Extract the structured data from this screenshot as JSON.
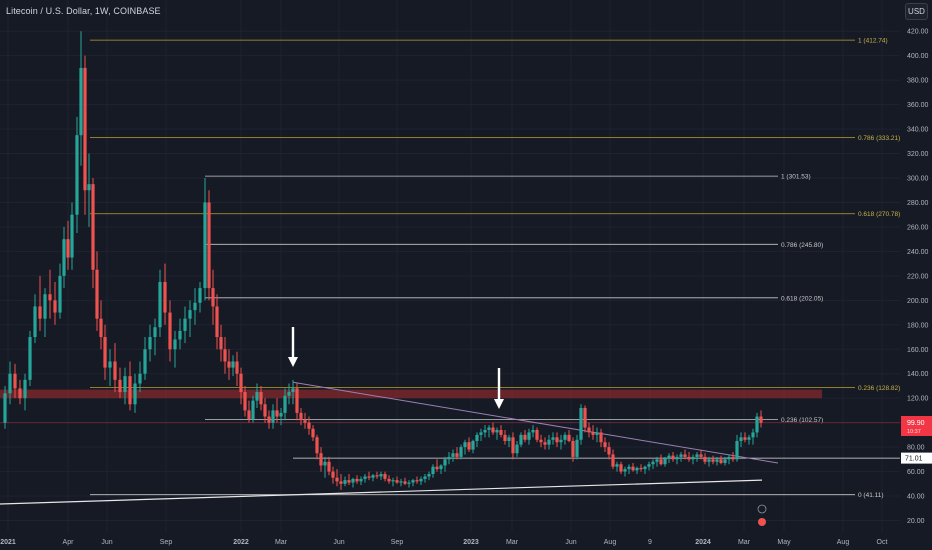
{
  "header": {
    "title": "Litecoin / U.S. Dollar, 1W, COINBASE",
    "currency": "USD"
  },
  "chart_data": {
    "type": "candlestick",
    "title": "Litecoin / U.S. Dollar, 1W, COINBASE",
    "ylim": [
      16,
      430
    ],
    "y_ticks": [
      20,
      40,
      60,
      80,
      100,
      120,
      140,
      160,
      180,
      200,
      220,
      240,
      260,
      280,
      300,
      320,
      340,
      360,
      380,
      400,
      420
    ],
    "x_ticks": [
      "2021",
      "Apr",
      "Jun",
      "Sep",
      "2022",
      "Mar",
      "Jun",
      "Sep",
      "2023",
      "Mar",
      "Jun",
      "Aug",
      "9",
      "2024",
      "Mar",
      "May",
      "Aug",
      "Oct"
    ],
    "price_labels": {
      "current": "99.90",
      "current_sub": "10:37",
      "level": "71.01"
    },
    "fib_levels": [
      {
        "label": "1 (412.74)",
        "value": 412.74,
        "color": "#b8a232"
      },
      {
        "label": "0.786 (333.21)",
        "value": 333.21,
        "color": "#b8a232"
      },
      {
        "label": "0.618 (270.78)",
        "value": 270.78,
        "color": "#b8a232"
      },
      {
        "label": "0.236 (128.82)",
        "value": 128.82,
        "color": "#b8a232"
      },
      {
        "label": "0 (41.11)",
        "value": 41.11,
        "color": "#c8c8c8"
      },
      {
        "label": "1 (301.53)",
        "value": 301.53,
        "color": "#c8c8c8"
      },
      {
        "label": "0.786 (245.80)",
        "value": 245.8,
        "color": "#c8c8c8"
      },
      {
        "label": "0.618 (202.05)",
        "value": 202.05,
        "color": "#c8c8c8"
      },
      {
        "label": "0.236 (102.57)",
        "value": 102.57,
        "color": "#c8c8c8"
      }
    ],
    "horizontal_lines": [
      {
        "value": 71.01
      },
      {
        "value": 99.9
      }
    ],
    "zone": {
      "from": 120,
      "to": 127
    },
    "colors": {
      "up": "#26a69a",
      "down": "#ef5350",
      "fib_old": "#b8a232",
      "fib_new": "#c8c8c8"
    }
  }
}
